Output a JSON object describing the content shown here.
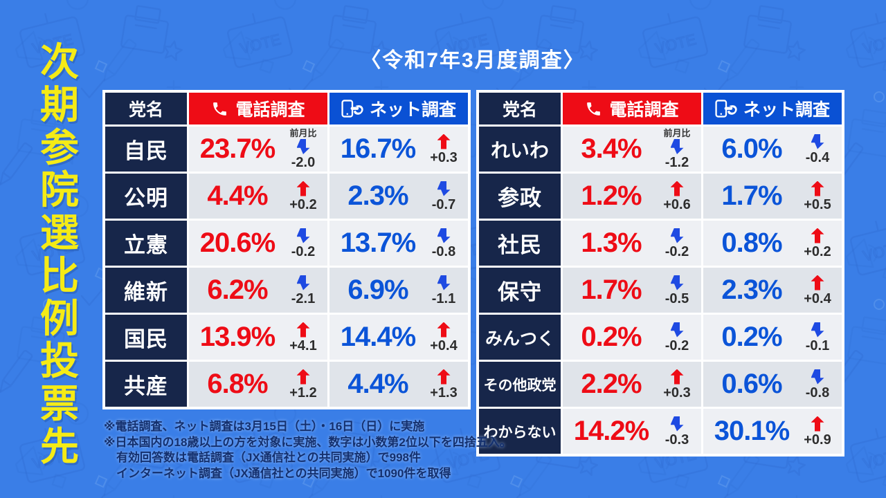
{
  "page": {
    "survey_period_label": "〈令和7年3月度調査〉",
    "vertical_title": "次期参院選比例投票先"
  },
  "table_headers": {
    "party": "党名",
    "phone": "電話調査",
    "net": "ネット調査"
  },
  "prev_month_label": "前月比",
  "icons": {
    "phone": "phone-icon",
    "net": "smartphone-tap-icon",
    "up": "up-arrow-icon",
    "down": "down-arrow-icon"
  },
  "colors": {
    "background": "#3a7ee7",
    "navy": "#17264a",
    "phone_red": "#ee0c16",
    "net_blue": "#0a51d4",
    "up_arrow": "#ee0c16",
    "down_arrow": "#1e4ae2",
    "title_yellow": "#f5eb16",
    "row_light": "#eef0f4",
    "row_dark": "#e0e4ea"
  },
  "tables": [
    {
      "rows": [
        {
          "party": "自民",
          "phone": {
            "value": "23.7%",
            "direction": "down",
            "change": "-2.0"
          },
          "net": {
            "value": "16.7%",
            "direction": "up",
            "change": "+0.3"
          }
        },
        {
          "party": "公明",
          "phone": {
            "value": "4.4%",
            "direction": "up",
            "change": "+0.2"
          },
          "net": {
            "value": "2.3%",
            "direction": "down",
            "change": "-0.7"
          }
        },
        {
          "party": "立憲",
          "phone": {
            "value": "20.6%",
            "direction": "down",
            "change": "-0.2"
          },
          "net": {
            "value": "13.7%",
            "direction": "down",
            "change": "-0.8"
          }
        },
        {
          "party": "維新",
          "phone": {
            "value": "6.2%",
            "direction": "down",
            "change": "-2.1"
          },
          "net": {
            "value": "6.9%",
            "direction": "down",
            "change": "-1.1"
          }
        },
        {
          "party": "国民",
          "phone": {
            "value": "13.9%",
            "direction": "up",
            "change": "+4.1"
          },
          "net": {
            "value": "14.4%",
            "direction": "up",
            "change": "+0.4"
          }
        },
        {
          "party": "共産",
          "phone": {
            "value": "6.8%",
            "direction": "up",
            "change": "+1.2"
          },
          "net": {
            "value": "4.4%",
            "direction": "up",
            "change": "+1.3"
          }
        }
      ]
    },
    {
      "rows": [
        {
          "party": "れいわ",
          "phone": {
            "value": "3.4%",
            "direction": "down",
            "change": "-1.2"
          },
          "net": {
            "value": "6.0%",
            "direction": "down",
            "change": "-0.4"
          }
        },
        {
          "party": "参政",
          "phone": {
            "value": "1.2%",
            "direction": "up",
            "change": "+0.6"
          },
          "net": {
            "value": "1.7%",
            "direction": "up",
            "change": "+0.5"
          }
        },
        {
          "party": "社民",
          "phone": {
            "value": "1.3%",
            "direction": "down",
            "change": "-0.2"
          },
          "net": {
            "value": "0.8%",
            "direction": "up",
            "change": "+0.2"
          }
        },
        {
          "party": "保守",
          "phone": {
            "value": "1.7%",
            "direction": "down",
            "change": "-0.5"
          },
          "net": {
            "value": "2.3%",
            "direction": "up",
            "change": "+0.4"
          }
        },
        {
          "party": "みんつく",
          "phone": {
            "value": "0.2%",
            "direction": "down",
            "change": "-0.2"
          },
          "net": {
            "value": "0.2%",
            "direction": "down",
            "change": "-0.1"
          }
        },
        {
          "party": "その他政党",
          "phone": {
            "value": "2.2%",
            "direction": "up",
            "change": "+0.3"
          },
          "net": {
            "value": "0.6%",
            "direction": "down",
            "change": "-0.8"
          }
        },
        {
          "party": "わからない",
          "phone": {
            "value": "14.2%",
            "direction": "down",
            "change": "-0.3"
          },
          "net": {
            "value": "30.1%",
            "direction": "up",
            "change": "+0.9"
          }
        }
      ]
    }
  ],
  "footnotes": [
    "※電話調査、ネット調査は3月15日（土）・16日（日）に実施",
    "※日本国内の18歳以上の方を対象に実施、数字は小数第2位以下を四捨五入。",
    "有効回答数は電話調査（JX通信社との共同実施）で998件",
    "インターネット調査（JX通信社との共同実施）で1090件を取得"
  ],
  "chart_data": {
    "type": "table",
    "title": "次期参院選比例投票先 〈令和7年3月度調査〉",
    "columns": [
      "党名",
      "電話調査 %",
      "電話調査 前月比",
      "ネット調査 %",
      "ネット調査 前月比"
    ],
    "rows": [
      [
        "自民",
        23.7,
        -2.0,
        16.7,
        0.3
      ],
      [
        "公明",
        4.4,
        0.2,
        2.3,
        -0.7
      ],
      [
        "立憲",
        20.6,
        -0.2,
        13.7,
        -0.8
      ],
      [
        "維新",
        6.2,
        -2.1,
        6.9,
        -1.1
      ],
      [
        "国民",
        13.9,
        4.1,
        14.4,
        0.4
      ],
      [
        "共産",
        6.8,
        1.2,
        4.4,
        1.3
      ],
      [
        "れいわ",
        3.4,
        -1.2,
        6.0,
        -0.4
      ],
      [
        "参政",
        1.2,
        0.6,
        1.7,
        0.5
      ],
      [
        "社民",
        1.3,
        -0.2,
        0.8,
        0.2
      ],
      [
        "保守",
        1.7,
        -0.5,
        2.3,
        0.4
      ],
      [
        "みんつく",
        0.2,
        -0.2,
        0.2,
        -0.1
      ],
      [
        "その他政党",
        2.2,
        0.3,
        0.6,
        -0.8
      ],
      [
        "わからない",
        14.2,
        -0.3,
        30.1,
        0.9
      ]
    ]
  }
}
